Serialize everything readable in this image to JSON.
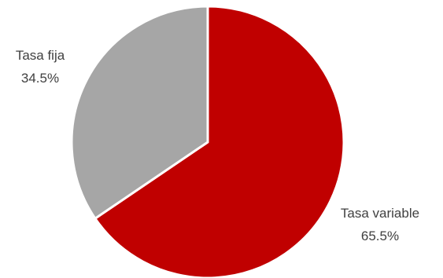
{
  "chart_data": {
    "type": "pie",
    "title": "",
    "series": [
      {
        "name": "Tasa variable",
        "value": 65.5,
        "label": "65.5%",
        "color": "#c00000"
      },
      {
        "name": "Tasa fija",
        "value": 34.5,
        "label": "34.5%",
        "color": "#a6a6a6"
      }
    ],
    "start_angle_deg": 0,
    "direction": "clockwise",
    "legend": "none",
    "slice_border_color": "#ffffff"
  }
}
